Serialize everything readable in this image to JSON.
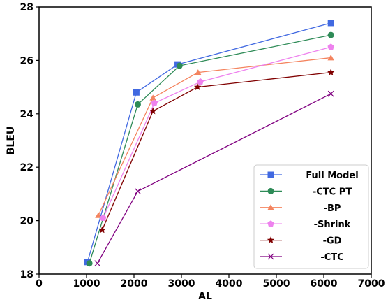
{
  "chart_data": {
    "type": "line",
    "title": "",
    "xlabel": "AL",
    "ylabel": "BLEU",
    "xlim": [
      0,
      7000
    ],
    "ylim": [
      18,
      28
    ],
    "xticks": [
      0,
      1000,
      2000,
      3000,
      4000,
      5000,
      6000,
      7000
    ],
    "yticks": [
      18,
      20,
      22,
      24,
      26,
      28
    ],
    "grid": false,
    "legend_position": "lower-right",
    "series": [
      {
        "name": "Full Model",
        "color": "#4169e1",
        "marker": "square",
        "x": [
          1020,
          2050,
          2920,
          6150
        ],
        "y": [
          18.45,
          24.8,
          25.85,
          27.4
        ]
      },
      {
        "name": "-CTC PT",
        "color": "#2e8b57",
        "marker": "circle",
        "x": [
          1060,
          2080,
          2960,
          6150
        ],
        "y": [
          18.4,
          24.35,
          25.8,
          26.95
        ]
      },
      {
        "name": "-BP",
        "color": "#f4845f",
        "marker": "triangle",
        "x": [
          1250,
          2400,
          3350,
          6150
        ],
        "y": [
          20.2,
          24.6,
          25.55,
          26.1
        ]
      },
      {
        "name": "-Shrink",
        "color": "#ee82ee",
        "marker": "pentagon",
        "x": [
          1350,
          2430,
          3400,
          6150
        ],
        "y": [
          20.1,
          24.4,
          25.2,
          26.5
        ]
      },
      {
        "name": "-GD",
        "color": "#800000",
        "marker": "star",
        "x": [
          1330,
          2400,
          3340,
          6150
        ],
        "y": [
          19.65,
          24.1,
          25.0,
          25.55
        ]
      },
      {
        "name": "-CTC",
        "color": "#800080",
        "marker": "x",
        "x": [
          1230,
          2080,
          6150
        ],
        "y": [
          18.4,
          21.1,
          24.75
        ]
      }
    ]
  }
}
